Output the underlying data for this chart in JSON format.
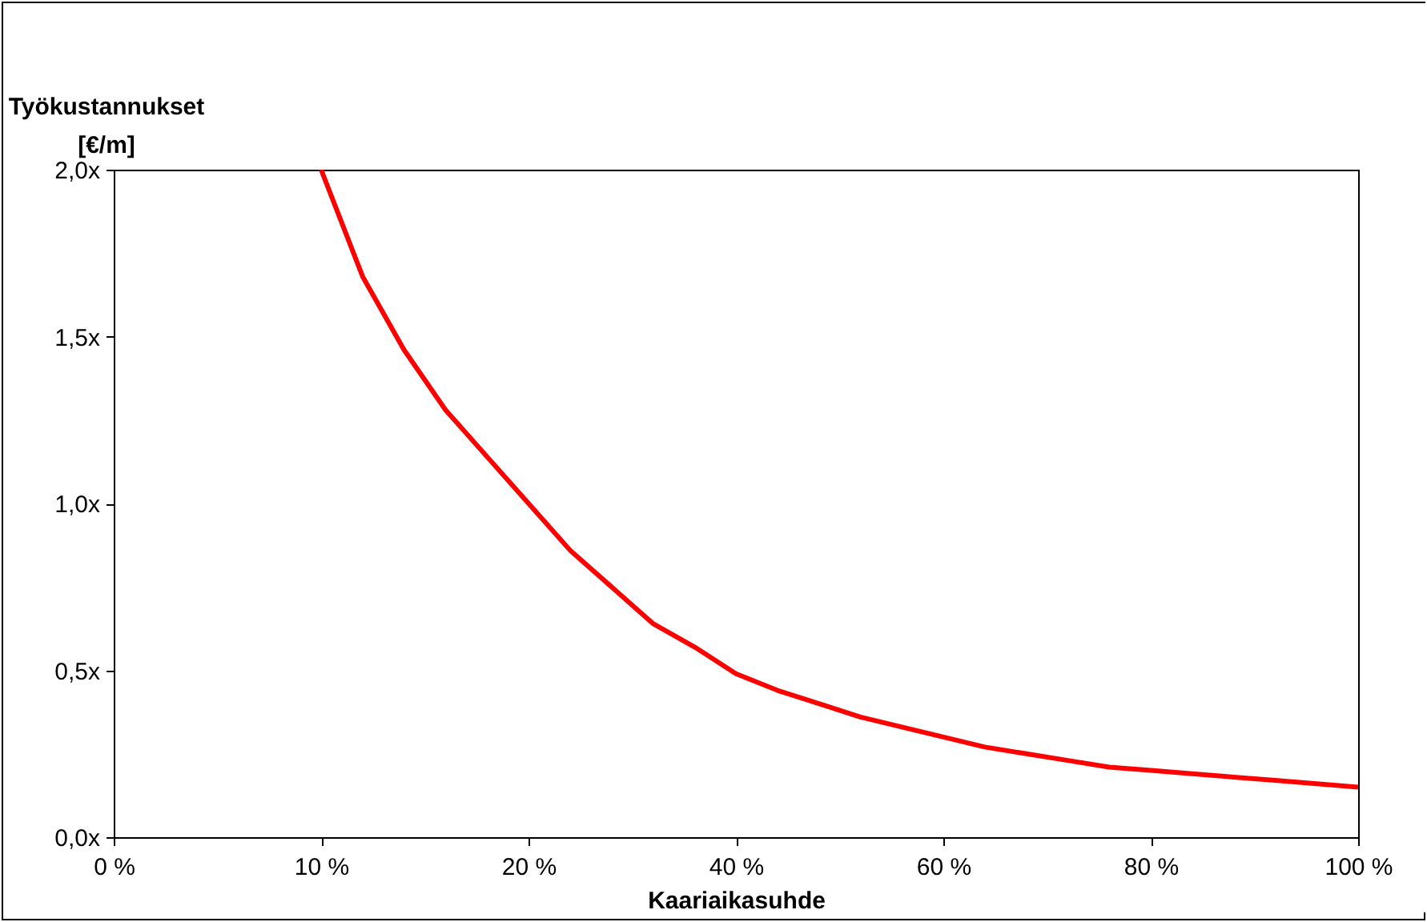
{
  "chart_data": {
    "type": "line",
    "xlabel": "Kaariaikasuhde",
    "ylabel": "Työkustannukset [€/m]",
    "categories": [
      "0 %",
      null,
      null,
      null,
      null,
      "10 %",
      null,
      null,
      null,
      null,
      "20 %",
      null,
      null,
      null,
      null,
      "40 %",
      null,
      null,
      null,
      null,
      "60 %",
      null,
      null,
      null,
      null,
      "80 %",
      null,
      null,
      null,
      null,
      "100 %"
    ],
    "series": [
      {
        "color": "#ff0000",
        "values": [
          null,
          null,
          null,
          null,
          null,
          2.0,
          1.68,
          1.46,
          1.28,
          1.14,
          1.0,
          0.86,
          0.75,
          0.64,
          0.57,
          0.49,
          0.44,
          0.4,
          0.36,
          0.33,
          0.3,
          0.27,
          0.25,
          0.23,
          0.21,
          0.2,
          0.19,
          0.18,
          0.17,
          0.16,
          0.15
        ]
      }
    ],
    "ylim": [
      0,
      2
    ],
    "yticks": [
      {
        "value": 0,
        "label": "0,0x"
      },
      {
        "value": 0.5,
        "label": "0,5x"
      },
      {
        "value": 1,
        "label": "1,0x"
      },
      {
        "value": 1.5,
        "label": "1,5x"
      },
      {
        "value": 2,
        "label": "2,0x"
      }
    ],
    "grid": false,
    "legend": false,
    "marker": "none",
    "line_style": "solid"
  }
}
